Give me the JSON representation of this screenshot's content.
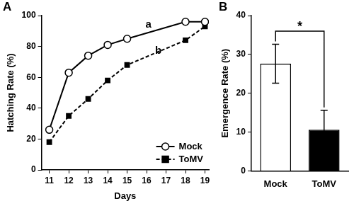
{
  "chart_data": [
    {
      "type": "line",
      "panel": "A",
      "x_label": "Days",
      "y_label": "Hatching Rate (%)",
      "x": [
        11,
        12,
        13,
        14,
        15,
        18,
        19
      ],
      "series": [
        {
          "name": "Mock",
          "color": "#000000",
          "marker": "circle_open",
          "line_style": "solid",
          "values": [
            26,
            63,
            74,
            81,
            85,
            96,
            96
          ]
        },
        {
          "name": "ToMV",
          "color": "#000000",
          "marker": "square",
          "line_style": "dashed",
          "values": [
            18,
            35,
            46,
            58,
            68,
            84,
            93
          ]
        }
      ],
      "xlim": [
        10.6,
        19.2
      ],
      "xticks": [
        11,
        12,
        13,
        14,
        15,
        16,
        17,
        18,
        19
      ],
      "ylim": [
        0,
        100
      ],
      "yticks": [
        0,
        20,
        40,
        60,
        80,
        100
      ],
      "grid": false,
      "legend": "lower right",
      "annotations": [
        {
          "text": "a",
          "x": 16.1,
          "y": 89
        },
        {
          "text": "b",
          "x": 16.6,
          "y": 72
        }
      ]
    },
    {
      "type": "bar",
      "panel": "B",
      "y_label": "Emergence Rate (%)",
      "categories": [
        "Mock",
        "ToMV"
      ],
      "values": [
        27.6,
        10.6
      ],
      "errors": [
        5,
        5
      ],
      "colors": [
        "#ffffff",
        "#000000"
      ],
      "ylim": [
        0,
        40
      ],
      "yticks": [
        0,
        10,
        20,
        30,
        40
      ],
      "grid": false,
      "annotations": [
        {
          "text": "*",
          "between": [
            0,
            1
          ],
          "y": 36
        }
      ]
    }
  ]
}
